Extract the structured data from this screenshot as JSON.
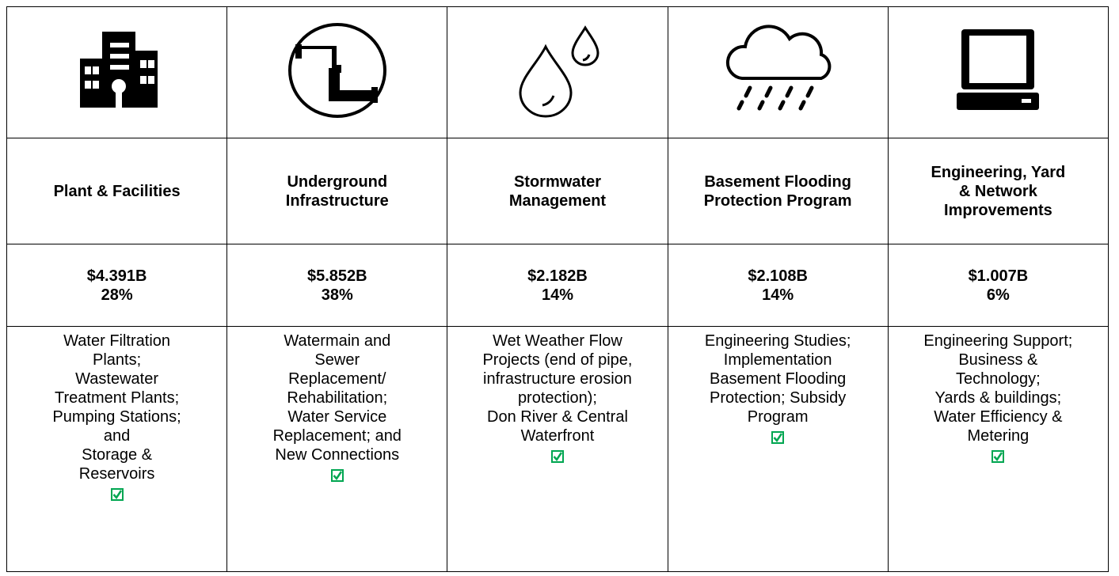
{
  "table": {
    "columns": [
      {
        "title": [
          "Plant & Facilities"
        ],
        "amount": "$4.391B",
        "percent": "28%",
        "description": [
          "Water Filtration",
          "Plants;",
          "Wastewater",
          "Treatment Plants;",
          "Pumping Stations;",
          "and",
          "Storage &",
          "Reservoirs"
        ]
      },
      {
        "title": [
          "Underground",
          "Infrastructure"
        ],
        "amount": "$5.852B",
        "percent": "38%",
        "description": [
          "Watermain and",
          "Sewer",
          "Replacement/",
          "Rehabilitation;",
          "Water Service",
          "Replacement; and",
          "New Connections"
        ]
      },
      {
        "title": [
          "Stormwater",
          "Management"
        ],
        "amount": "$2.182B",
        "percent": "14%",
        "description": [
          "Wet Weather Flow",
          "Projects (end of pipe,",
          "infrastructure erosion",
          "protection);",
          "Don River & Central",
          "Waterfront"
        ]
      },
      {
        "title": [
          "Basement Flooding",
          "Protection Program"
        ],
        "amount": "$2.108B",
        "percent": "14%",
        "description": [
          "Engineering Studies;",
          "Implementation",
          "Basement Flooding",
          "Protection; Subsidy",
          "Program"
        ]
      },
      {
        "title": [
          "Engineering, Yard",
          "& Network",
          "Improvements"
        ],
        "amount": "$1.007B",
        "percent": "6%",
        "description": [
          "Engineering Support;",
          "Business &",
          "Technology;",
          "Yards & buildings;",
          "Water Efficiency &",
          "Metering"
        ]
      }
    ]
  }
}
